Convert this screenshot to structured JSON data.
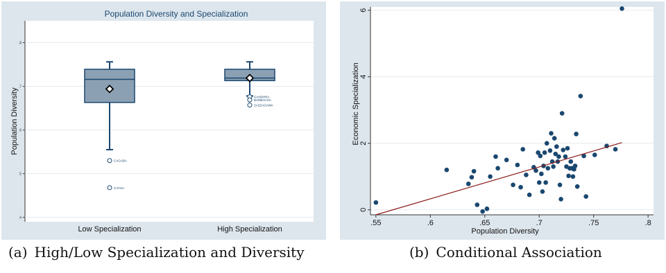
{
  "captions": {
    "a": {
      "tag": "(a)",
      "text": "High/Low Specialization and Diversity"
    },
    "b": {
      "tag": "(b)",
      "text": "Conditional Association"
    }
  },
  "chart_data": [
    {
      "type": "box",
      "title": "Population Diversity and Specialization",
      "ylabel": "Population Diversity",
      "xlabel": "",
      "ylim": [
        0.39,
        0.85
      ],
      "yticks": [
        ".4",
        ".5",
        ".6",
        ".7",
        ".8"
      ],
      "ytick_values": [
        0.4,
        0.5,
        0.6,
        0.7,
        0.8
      ],
      "categories": [
        "Low Specialization",
        "High Specialization"
      ],
      "boxes": [
        {
          "category": "Low Specialization",
          "whisker_low": 0.555,
          "q1": 0.663,
          "median": 0.716,
          "q3": 0.739,
          "whisker_high": 0.756,
          "mean": 0.694,
          "outliers": [
            {
              "label": "CAGABA",
              "value": 0.53
            },
            {
              "label": "CAYUA",
              "value": 0.468
            }
          ]
        },
        {
          "category": "High Specialization",
          "whisker_low": 0.678,
          "q1": 0.713,
          "median": 0.719,
          "q3": 0.739,
          "whisker_high": 0.756,
          "mean": 0.719,
          "outliers": [
            {
              "label": "GANDHRA",
              "value": 0.676
            },
            {
              "label": "BARBACOA",
              "value": 0.669
            },
            {
              "label": "ZAZZAGAWA",
              "value": 0.657
            }
          ]
        }
      ],
      "grid": true,
      "colors": {
        "box": "#8ca0b4",
        "line": "#1a476f",
        "grid": "#e6eaee",
        "outlier": "#1a476f"
      }
    },
    {
      "type": "scatter",
      "title": "",
      "xlabel": "Population Diversity",
      "ylabel": "Economic Specialization",
      "xlim": [
        0.545,
        0.805
      ],
      "ylim": [
        -0.15,
        6.1
      ],
      "xticks": [
        ".55",
        ".6",
        ".65",
        ".7",
        ".75",
        ".8"
      ],
      "xtick_values": [
        0.55,
        0.6,
        0.65,
        0.7,
        0.75,
        0.8
      ],
      "yticks": [
        "0",
        "2",
        "4",
        "6"
      ],
      "ytick_values": [
        0,
        2,
        4,
        6
      ],
      "grid": true,
      "points": [
        [
          0.55,
          0.22
        ],
        [
          0.615,
          1.2
        ],
        [
          0.635,
          0.78
        ],
        [
          0.638,
          0.98
        ],
        [
          0.64,
          1.16
        ],
        [
          0.643,
          0.15
        ],
        [
          0.648,
          -0.05
        ],
        [
          0.652,
          0.03
        ],
        [
          0.655,
          1.0
        ],
        [
          0.66,
          1.6
        ],
        [
          0.662,
          1.25
        ],
        [
          0.67,
          1.5
        ],
        [
          0.676,
          0.75
        ],
        [
          0.68,
          1.35
        ],
        [
          0.683,
          0.68
        ],
        [
          0.685,
          1.82
        ],
        [
          0.688,
          1.05
        ],
        [
          0.691,
          0.45
        ],
        [
          0.695,
          1.28
        ],
        [
          0.697,
          1.18
        ],
        [
          0.699,
          1.72
        ],
        [
          0.7,
          0.82
        ],
        [
          0.701,
          1.62
        ],
        [
          0.702,
          1.08
        ],
        [
          0.703,
          0.55
        ],
        [
          0.704,
          1.32
        ],
        [
          0.705,
          1.72
        ],
        [
          0.706,
          0.82
        ],
        [
          0.707,
          2.0
        ],
        [
          0.708,
          1.25
        ],
        [
          0.71,
          1.78
        ],
        [
          0.711,
          2.3
        ],
        [
          0.712,
          1.45
        ],
        [
          0.713,
          1.3
        ],
        [
          0.714,
          2.15
        ],
        [
          0.715,
          1.68
        ],
        [
          0.716,
          1.9
        ],
        [
          0.717,
          1.45
        ],
        [
          0.718,
          1.6
        ],
        [
          0.719,
          0.75
        ],
        [
          0.72,
          0.32
        ],
        [
          0.721,
          2.9
        ],
        [
          0.722,
          1.8
        ],
        [
          0.724,
          1.6
        ],
        [
          0.725,
          1.3
        ],
        [
          0.726,
          1.85
        ],
        [
          0.727,
          1.02
        ],
        [
          0.728,
          1.25
        ],
        [
          0.729,
          1.45
        ],
        [
          0.73,
          1.25
        ],
        [
          0.731,
          1.0
        ],
        [
          0.732,
          1.22
        ],
        [
          0.733,
          1.32
        ],
        [
          0.734,
          2.28
        ],
        [
          0.735,
          0.7
        ],
        [
          0.738,
          3.42
        ],
        [
          0.741,
          1.62
        ],
        [
          0.743,
          0.4
        ],
        [
          0.751,
          1.65
        ],
        [
          0.762,
          1.92
        ],
        [
          0.77,
          1.82
        ],
        [
          0.776,
          6.05
        ]
      ],
      "fit_line": {
        "x": [
          0.55,
          0.776
        ],
        "y": [
          -0.15,
          2.02
        ]
      },
      "colors": {
        "point": "#1a476f",
        "fit": "#8b1a1a",
        "grid": "#e6eaee"
      }
    }
  ]
}
